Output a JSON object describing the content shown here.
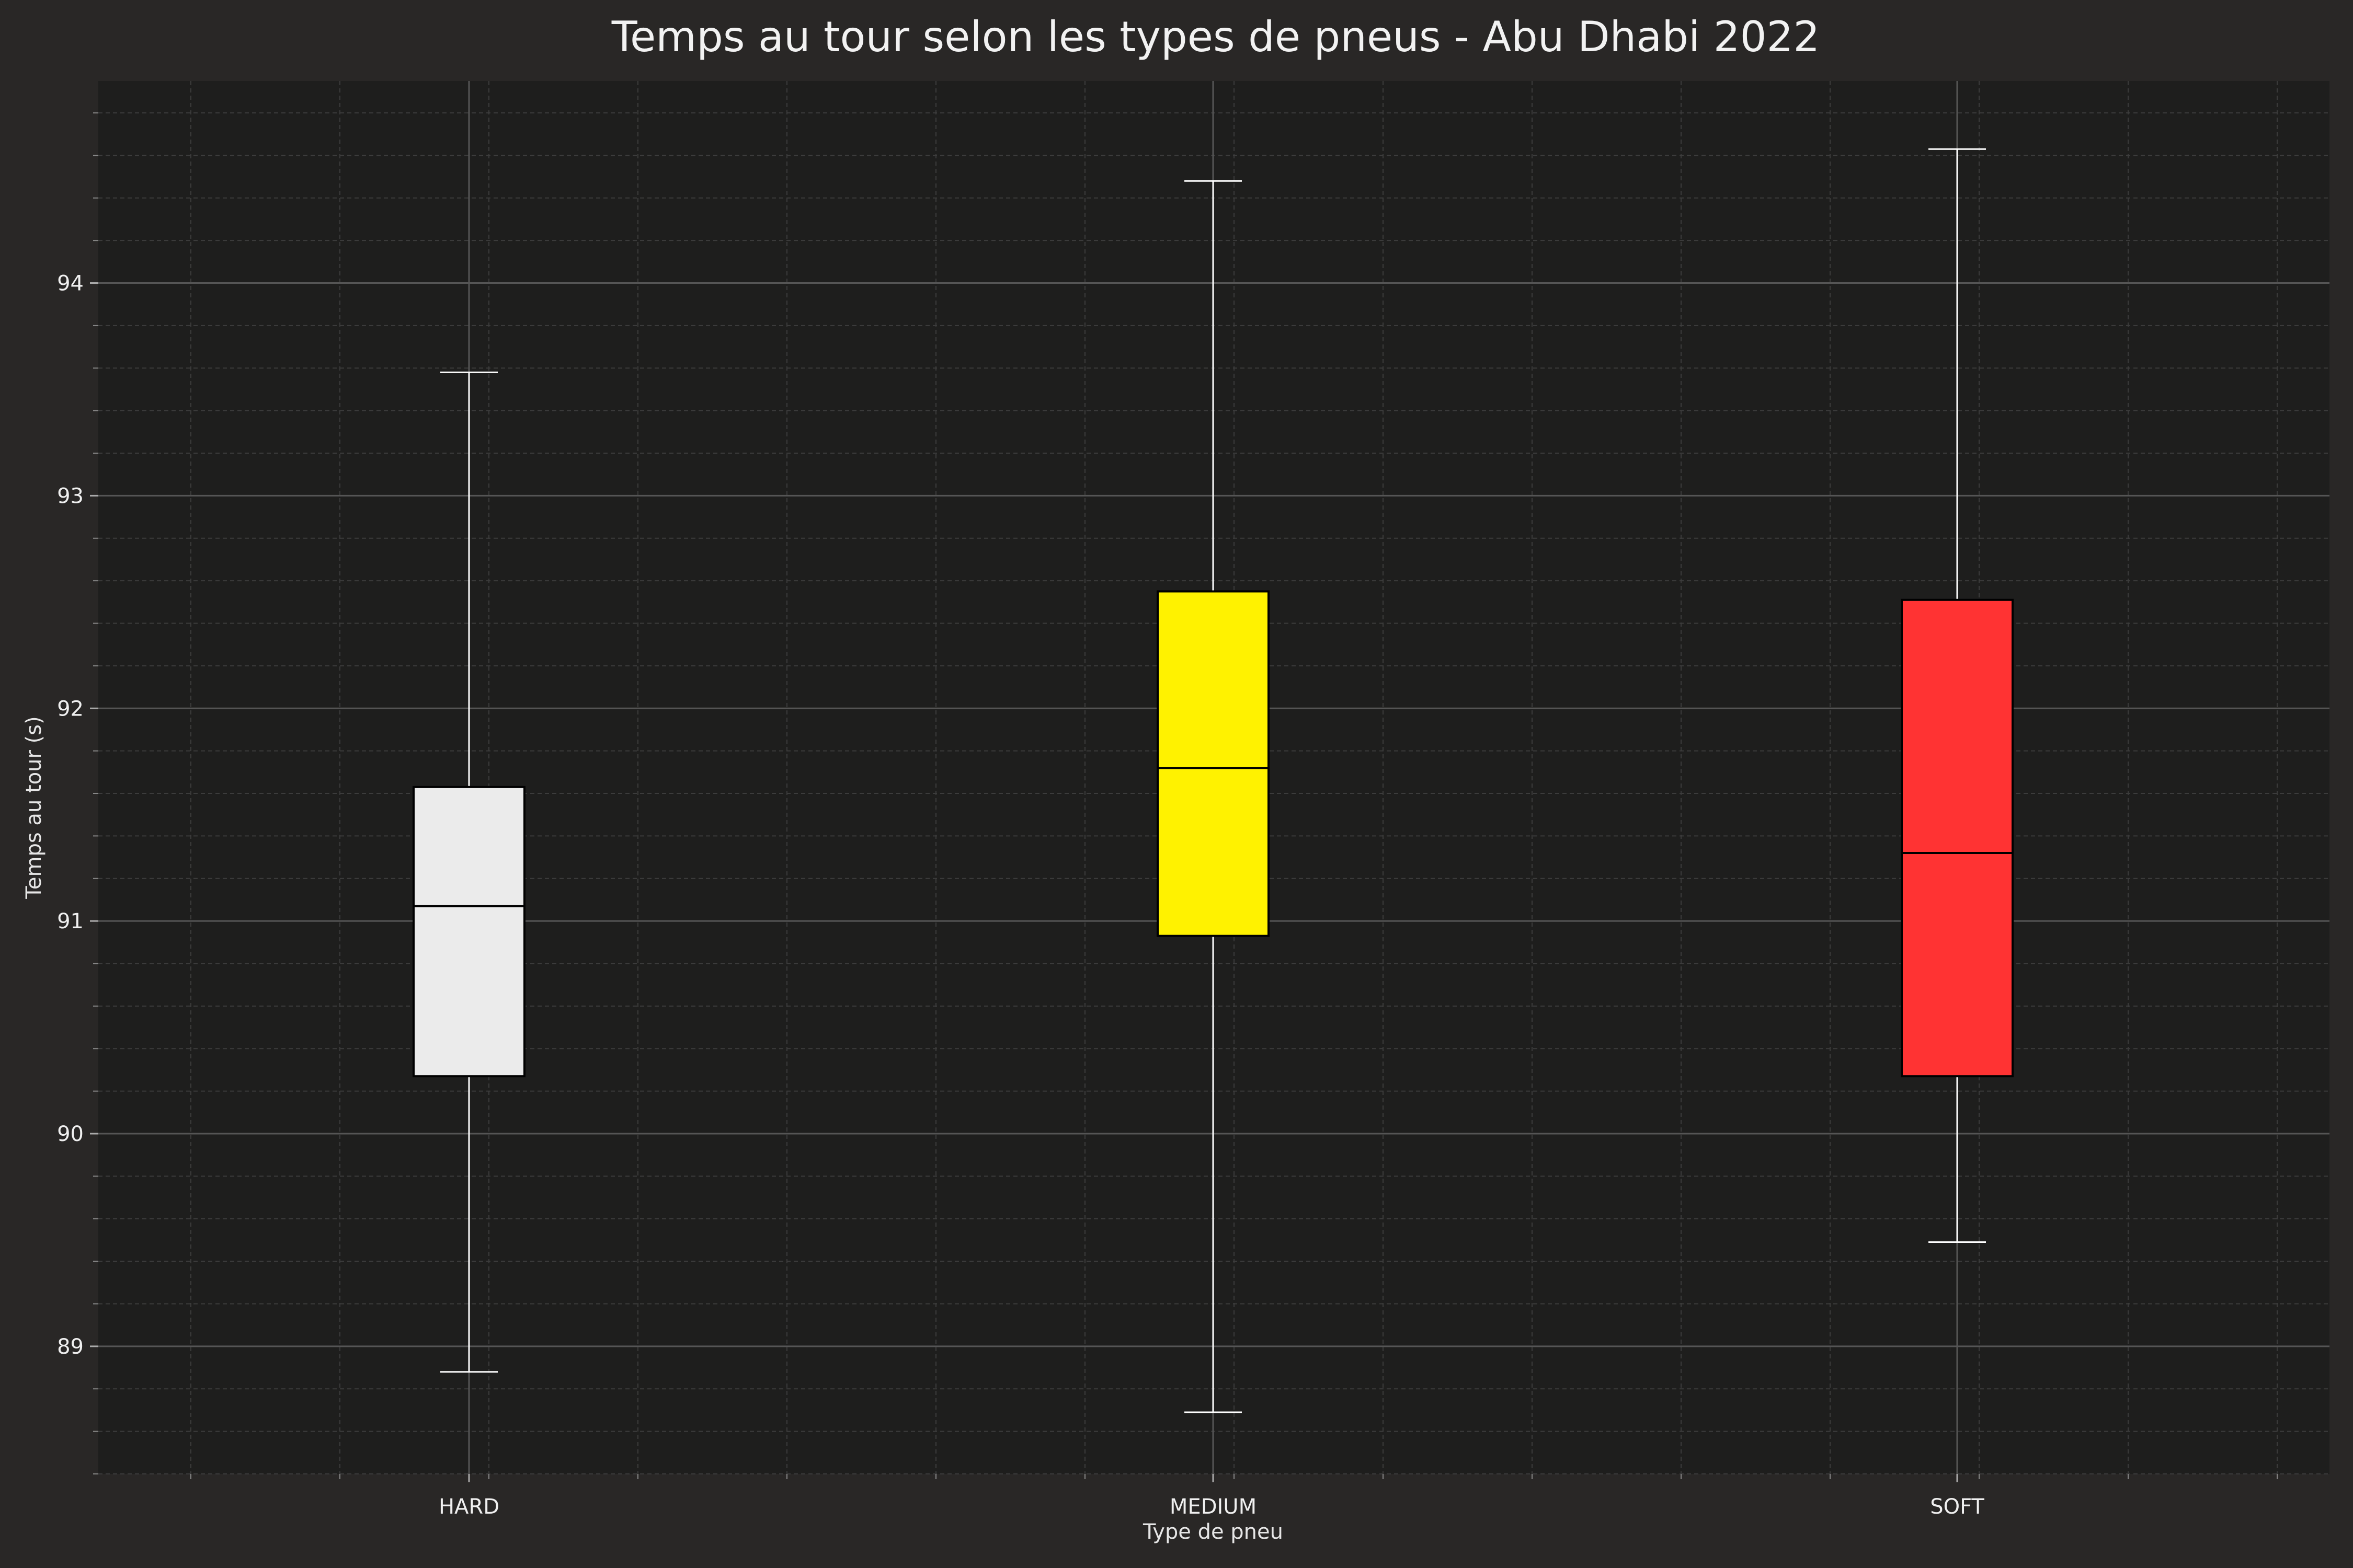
{
  "chart_data": {
    "type": "boxplot",
    "title": "Temps au tour selon les types de pneus - Abu Dhabi 2022",
    "xlabel": "Type de pneu",
    "ylabel": "Temps au tour (s)",
    "ylim": [
      88.4,
      94.95
    ],
    "yticks": [
      89,
      90,
      91,
      92,
      93,
      94
    ],
    "grid": true,
    "categories": [
      "HARD",
      "MEDIUM",
      "SOFT"
    ],
    "boxes": [
      {
        "category": "HARD",
        "whisker_low": 88.88,
        "q1": 90.27,
        "median": 91.07,
        "q3": 91.63,
        "whisker_high": 93.58,
        "color": "#ebebeb"
      },
      {
        "category": "MEDIUM",
        "whisker_low": 88.69,
        "q1": 90.93,
        "median": 91.72,
        "q3": 92.55,
        "whisker_high": 94.48,
        "color": "#fff200"
      },
      {
        "category": "SOFT",
        "whisker_low": 89.49,
        "q1": 90.27,
        "median": 91.32,
        "q3": 92.51,
        "whisker_high": 94.63,
        "color": "#ff3333"
      }
    ],
    "colors": {
      "background": "#292726",
      "plot_background": "#1e1e1d",
      "grid_major": "#555555",
      "grid_minor": "#3c3c3c",
      "whisker": "#ffffff"
    }
  }
}
